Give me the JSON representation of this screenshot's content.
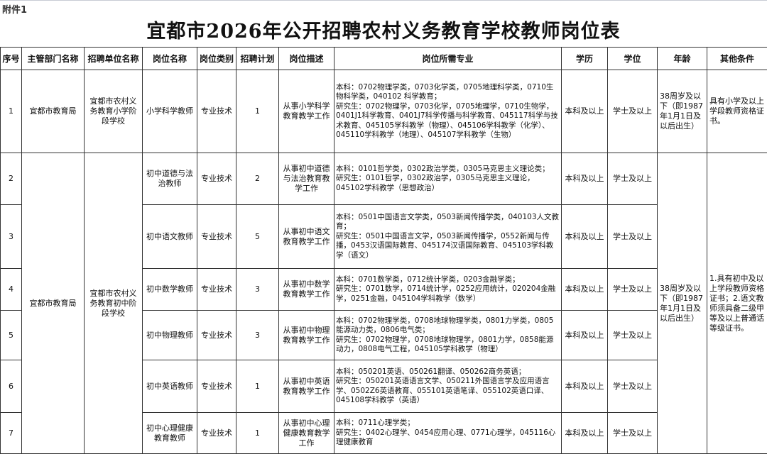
{
  "attachment": "附件1",
  "title": "宜都市2026年公开招聘农村义务教育学校教师岗位表",
  "headers": [
    "序号",
    "主管部门名称",
    "招聘单位名称",
    "岗位名称",
    "岗位类别",
    "招聘计划",
    "岗位描述",
    "岗位所需专业",
    "学历",
    "学位",
    "年龄",
    "其他条件"
  ],
  "merged": {
    "dept": "宜都市教育局",
    "unit_middle": "宜都市农村义务教育初中阶段学校",
    "age_middle": "38周岁及以下（即1987年1月1日及以后出生）",
    "other_middle": "1.具有初中及以上学段教师资格证书；2.语文教师须具备二级甲等及以上普通话等级证书。"
  },
  "rows": [
    {
      "no": "1",
      "dept": "宜都市教育局",
      "unit": "宜都市农村义务教育小学阶段学校",
      "post": "小学科学教师",
      "category": "专业技术",
      "plan": "1",
      "desc": "从事小学科学教育教学工作",
      "major_undergrad": "本科：0702物理学类，0703化学类，0705地理科学类，0710生物科学类，040102 科学教育；",
      "major_grad": "研究生：0702物理学，0703化学，0705地理学，0710生物学，0401J1科学教育、0401J7科学传播与科学教育、045117科学与技术教育、045105学科教学（物理）、045106学科教学（化学）、045110学科教学（地理）、045107学科教学（生物）",
      "edu": "本科及以上",
      "degree": "学士及以上",
      "age": "38周岁及以下（即1987年1月1日及以后出生）",
      "other": "具有小学及以上学段教师资格证书。"
    },
    {
      "no": "2",
      "post": "初中道德与法治教师",
      "category": "专业技术",
      "plan": "2",
      "desc": "从事初中道德与法治教育教学工作",
      "major_undergrad": "本科：0101哲学类，0302政治学类，0305马克思主义理论类；",
      "major_grad": "研究生：0101哲学，0302政治学，0305马克思主义理论，045102学科教学（思想政治）",
      "edu": "本科及以上",
      "degree": "学士及以上"
    },
    {
      "no": "3",
      "post": "初中语文教师",
      "category": "专业技术",
      "plan": "5",
      "desc": "从事初中语文教育教学工作",
      "major_undergrad": "本科：0501中国语言文学类，0503新闻传播学类，040103人文教育；",
      "major_grad": "研究生：0501中国语言文学，0503新闻传播学，0552新闻与传播，0453汉语国际教育、045174汉语国际教育、045103学科教学（语文）",
      "edu": "本科及以上",
      "degree": "学士及以上"
    },
    {
      "no": "4",
      "post": "初中数学教师",
      "category": "专业技术",
      "plan": "3",
      "desc": "从事初中数学教育教学工作",
      "major_undergrad": "本科：0701数学类，0712统计学类，0203金融学类；",
      "major_grad": "研究生：0701数学，0714统计学，0252应用统计，020204金融学，0251金融，045104学科教学（数学）",
      "edu": "本科及以上",
      "degree": "学士及以上"
    },
    {
      "no": "5",
      "post": "初中物理教师",
      "category": "专业技术",
      "plan": "3",
      "desc": "从事初中物理教育教学工作",
      "major_undergrad": "本科：0702物理学类，0708地球物理学类，0801力学类，0805能源动力类，0806电气类；",
      "major_grad": "研究生：0702物理学，0708地球物理学，0801力学，0858能源动力，0808电气工程，045105学科教学（物理）",
      "edu": "本科及以上",
      "degree": "学士及以上"
    },
    {
      "no": "6",
      "post": "初中英语教师",
      "category": "专业技术",
      "plan": "1",
      "desc": "从事初中英语教育教学工作",
      "major_undergrad": "本科：050201英语、050261翻译、050262商务英语；",
      "major_grad": "研究生：050201英语语言文学、050211外国语言学及应用语言学、0502Z6英语教育、055101英语笔译、055102英语口译、045108学科教学（英语）",
      "edu": "本科及以上",
      "degree": "学士及以上"
    },
    {
      "no": "7",
      "post": "初中心理健康教育教师",
      "category": "专业技术",
      "plan": "1",
      "desc": "从事初中心理健康教育教学工作",
      "major_undergrad": "本科：0711心理学类；",
      "major_grad": "研究生：0402心理学、0454应用心理、0771心理学，045116心理健康教育",
      "edu": "本科及以上",
      "degree": "学士及以上"
    }
  ]
}
